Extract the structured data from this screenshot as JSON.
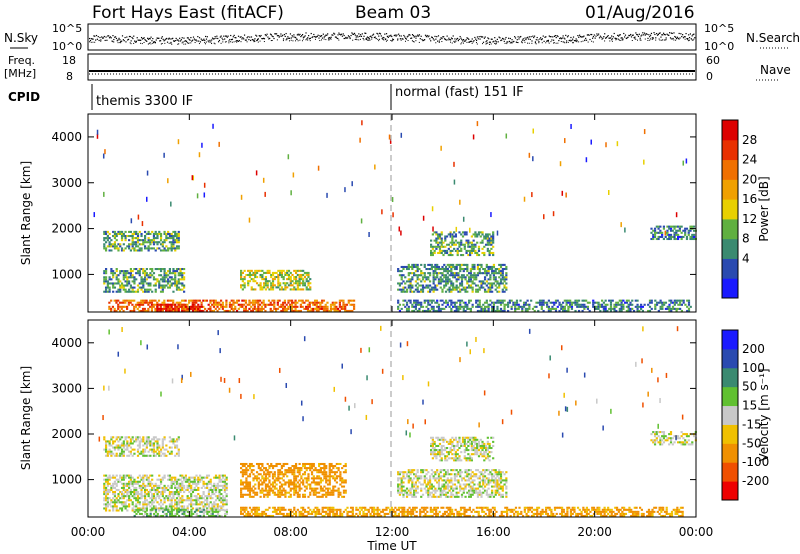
{
  "header": {
    "station": "Fort Hays East (fitACF)",
    "beam": "Beam 03",
    "date": "01/Aug/2016"
  },
  "noise_panel": {
    "left_label": "N.Sky",
    "right_label": "N.Search",
    "left_ticks": [
      "10^5",
      "10^0"
    ],
    "right_ticks": [
      "10^5",
      "10^0"
    ]
  },
  "freq_panel": {
    "left_label_1": "Freq.",
    "left_label_2": "[MHz]",
    "right_label": "Nave",
    "left_ticks": [
      "18",
      "8"
    ],
    "right_ticks": [
      "60",
      "0"
    ]
  },
  "cpid_panel": {
    "label": "CPID",
    "modes": [
      "themis 3300 IF",
      "normal (fast) 151 IF"
    ]
  },
  "x_axis": {
    "label": "Time UT",
    "ticks": [
      "00:00",
      "04:00",
      "08:00",
      "12:00",
      "16:00",
      "20:00",
      "00:00"
    ]
  },
  "power_panel": {
    "ylabel": "Slant Range [km]",
    "yticks": [
      "1000",
      "2000",
      "3000",
      "4000"
    ],
    "colorbar_label": "Power [dB]",
    "colorbar_ticks": [
      "4",
      "8",
      "12",
      "16",
      "20",
      "24",
      "28"
    ],
    "colorbar_colors": [
      "#1a1aff",
      "#2a4ab0",
      "#3a8a70",
      "#60b040",
      "#e8d000",
      "#f0a000",
      "#f07000",
      "#e83000",
      "#dd0000"
    ]
  },
  "velocity_panel": {
    "ylabel": "Slant Range [km]",
    "yticks": [
      "1000",
      "2000",
      "3000",
      "4000"
    ],
    "colorbar_label": "Velocity [m s⁻¹]",
    "colorbar_ticks": [
      "200",
      "100",
      "50",
      "15",
      "-15",
      "-50",
      "-100",
      "-200"
    ],
    "colorbar_colors": [
      "#1a1aff",
      "#2a4ab0",
      "#3a8a70",
      "#60c030",
      "#c8c8c8",
      "#f0c000",
      "#f09000",
      "#f05000",
      "#ee0000"
    ]
  },
  "chart_data": [
    {
      "type": "line",
      "title": "Fort Hays East (fitACF)",
      "series": [
        {
          "name": "N.Sky",
          "x": [
            "00:00",
            "04:00",
            "08:00",
            "12:00",
            "16:00",
            "20:00",
            "24:00"
          ],
          "values": [
            2000,
            3000,
            1500,
            1200,
            2500,
            3500,
            4000
          ]
        }
      ],
      "xlabel": "Time UT",
      "ylabel": "N.Sky"
    },
    {
      "type": "line",
      "series": [
        {
          "name": "Freq.",
          "x": [
            "00:00",
            "12:00",
            "24:00"
          ],
          "values": [
            10.5,
            10.5,
            10.5
          ]
        }
      ],
      "ylabel": "Freq. [MHz]",
      "ylim": [
        8,
        18
      ]
    },
    {
      "type": "heatmap",
      "ylabel": "Slant Range [km]",
      "xlabel": "Time UT",
      "xlim": [
        0,
        24
      ],
      "ylim": [
        180,
        4500
      ],
      "colorbar": "Power [dB]",
      "clim": [
        0,
        30
      ],
      "regions": [
        {
          "t0": 0.8,
          "t1": 10.5,
          "r0": 180,
          "r1": 450,
          "value": 22
        },
        {
          "t0": 2.7,
          "t1": 4.5,
          "r0": 180,
          "r1": 350,
          "value": 28
        },
        {
          "t0": 6.0,
          "t1": 8.8,
          "r0": 650,
          "r1": 1100,
          "value": 14
        },
        {
          "t0": 0.6,
          "t1": 3.8,
          "r0": 600,
          "r1": 1100,
          "value": 10
        },
        {
          "t0": 0.6,
          "t1": 3.6,
          "r0": 1500,
          "r1": 1950,
          "value": 10
        },
        {
          "t0": 12.2,
          "t1": 23.8,
          "r0": 180,
          "r1": 450,
          "value": 8
        },
        {
          "t0": 12.2,
          "t1": 16.5,
          "r0": 600,
          "r1": 1200,
          "value": 9
        },
        {
          "t0": 13.5,
          "t1": 16.0,
          "r0": 1400,
          "r1": 1900,
          "value": 10
        },
        {
          "t0": 22.2,
          "t1": 24.0,
          "r0": 1750,
          "r1": 2050,
          "value": 8
        }
      ]
    },
    {
      "type": "heatmap",
      "ylabel": "Slant Range [km]",
      "xlabel": "Time UT",
      "xlim": [
        0,
        24
      ],
      "ylim": [
        180,
        4500
      ],
      "colorbar": "Velocity [m s⁻¹]",
      "clim": [
        -200,
        200
      ],
      "regions": [
        {
          "t0": 0.6,
          "t1": 5.5,
          "r0": 300,
          "r1": 1100,
          "value": 0
        },
        {
          "t0": 6.0,
          "t1": 10.2,
          "r0": 600,
          "r1": 1350,
          "value": -70
        },
        {
          "t0": 1.8,
          "t1": 5.5,
          "r0": 180,
          "r1": 350,
          "value": 30
        },
        {
          "t0": 6.0,
          "t1": 23.5,
          "r0": 180,
          "r1": 400,
          "value": -60
        },
        {
          "t0": 12.2,
          "t1": 16.5,
          "r0": 600,
          "r1": 1200,
          "value": 0
        },
        {
          "t0": 13.5,
          "t1": 16.0,
          "r0": 1400,
          "r1": 1900,
          "value": 0
        },
        {
          "t0": 0.6,
          "t1": 3.6,
          "r0": 1500,
          "r1": 1950,
          "value": 0
        },
        {
          "t0": 22.2,
          "t1": 24.0,
          "r0": 1750,
          "r1": 2050,
          "value": 0
        }
      ]
    }
  ]
}
